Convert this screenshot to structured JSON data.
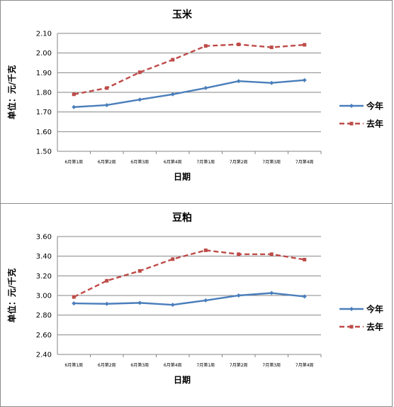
{
  "chart_data": [
    {
      "type": "line",
      "title": "玉米",
      "xlabel": "日期",
      "ylabel": "单位：元/千克",
      "categories": [
        "6月第1周",
        "6月第2周",
        "6月第3周",
        "6月第4周",
        "7月第1周",
        "7月第2周",
        "7月第3周",
        "7月第4周"
      ],
      "ylim": [
        1.5,
        2.1
      ],
      "yticks": [
        "1.50",
        "1.60",
        "1.70",
        "1.80",
        "1.90",
        "2.00",
        "2.10"
      ],
      "grid": true,
      "legend_position": "right",
      "series": [
        {
          "name": "今年",
          "color": "#4a7ebb",
          "style": "solid",
          "values": [
            1.725,
            1.735,
            1.763,
            1.79,
            1.822,
            1.857,
            1.848,
            1.862
          ]
        },
        {
          "name": "去年",
          "color": "#be4b48",
          "style": "dashed",
          "values": [
            1.79,
            1.822,
            1.902,
            1.966,
            2.036,
            2.044,
            2.029,
            2.042
          ]
        }
      ]
    },
    {
      "type": "line",
      "title": "豆粕",
      "xlabel": "日期",
      "ylabel": "单位：元/千克",
      "categories": [
        "6月第1周",
        "6月第2周",
        "6月第3周",
        "6月第4周",
        "7月第1周",
        "7月第2周",
        "7月第3周",
        "7月第4周"
      ],
      "ylim": [
        2.4,
        3.6
      ],
      "yticks": [
        "2.40",
        "2.60",
        "2.80",
        "3.00",
        "3.20",
        "3.40",
        "3.60"
      ],
      "grid": true,
      "legend_position": "right",
      "series": [
        {
          "name": "今年",
          "color": "#4a7ebb",
          "style": "solid",
          "values": [
            2.92,
            2.915,
            2.925,
            2.905,
            2.95,
            3.0,
            3.025,
            2.99
          ]
        },
        {
          "name": "去年",
          "color": "#be4b48",
          "style": "dashed",
          "values": [
            2.985,
            3.15,
            3.25,
            3.37,
            3.46,
            3.42,
            3.42,
            3.365
          ]
        }
      ]
    }
  ]
}
